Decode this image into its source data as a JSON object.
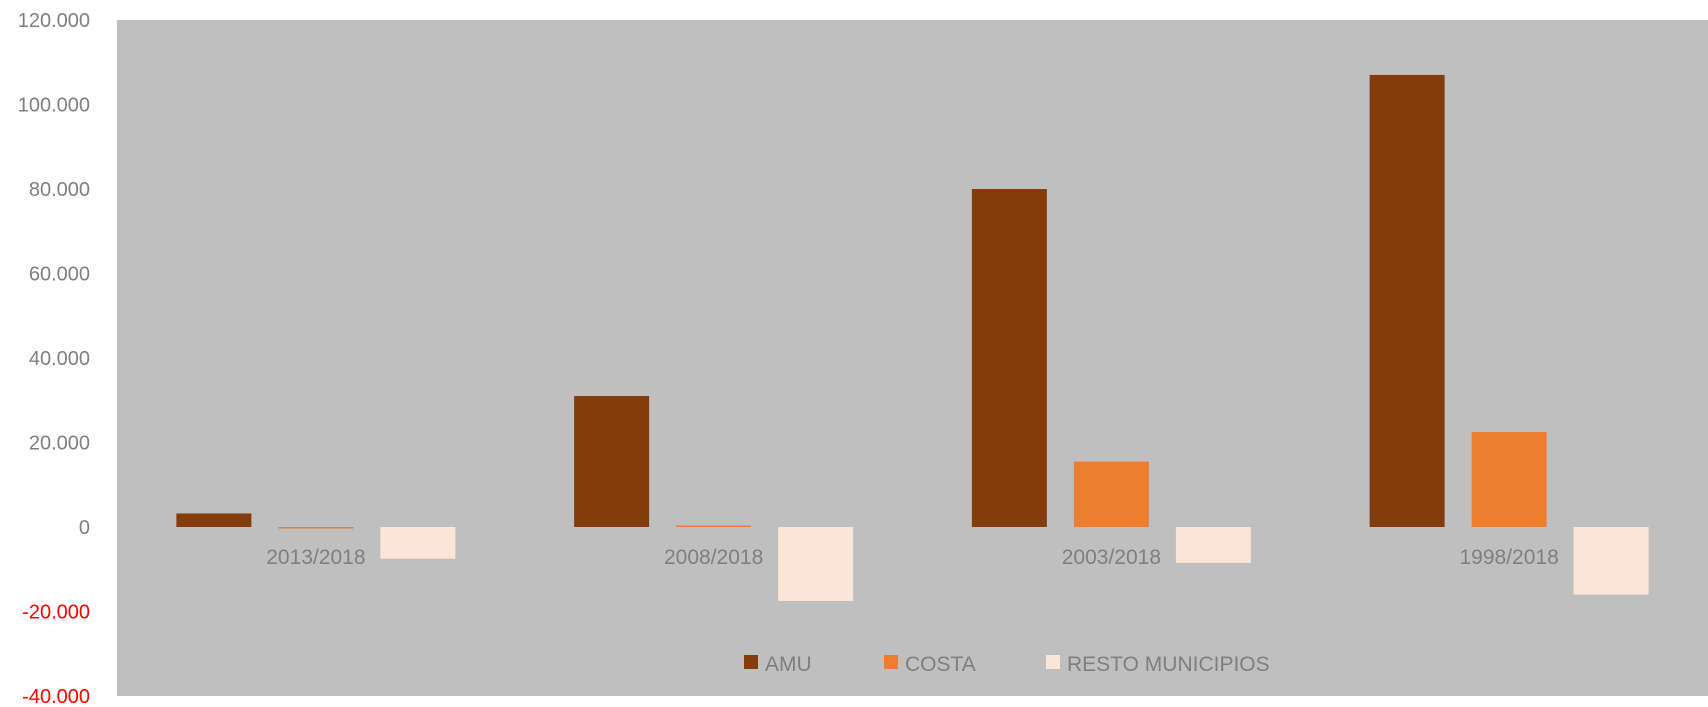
{
  "chart_data": {
    "type": "bar",
    "categories": [
      "2013/2018",
      "2008/2018",
      "2003/2018",
      "1998/2018"
    ],
    "series": [
      {
        "name": "AMU",
        "color": "#843c0c",
        "values": [
          3200,
          31000,
          80000,
          107000
        ]
      },
      {
        "name": "COSTA",
        "color": "#ed7d31",
        "values": [
          -300,
          300,
          15500,
          22500
        ]
      },
      {
        "name": "RESTO MUNICIPIOS",
        "color": "#fbe5d6",
        "values": [
          -7500,
          -17500,
          -8500,
          -16000
        ]
      }
    ],
    "ylim": [
      -40000,
      120000
    ],
    "y_ticks": [
      {
        "value": -40000,
        "label": "-40.000"
      },
      {
        "value": -20000,
        "label": "-20.000"
      },
      {
        "value": 0,
        "label": "0"
      },
      {
        "value": 20000,
        "label": "20.000"
      },
      {
        "value": 40000,
        "label": "40.000"
      },
      {
        "value": 60000,
        "label": "60.000"
      },
      {
        "value": 80000,
        "label": "80.000"
      },
      {
        "value": 100000,
        "label": "100.000"
      },
      {
        "value": 120000,
        "label": "120.000"
      }
    ],
    "negative_tick_color": "#ff0000",
    "tick_color": "#7f7f7f",
    "plot_background": "#bfbfbf",
    "grid": false,
    "legend_position": "bottom-center",
    "title": "",
    "xlabel": "",
    "ylabel": ""
  }
}
